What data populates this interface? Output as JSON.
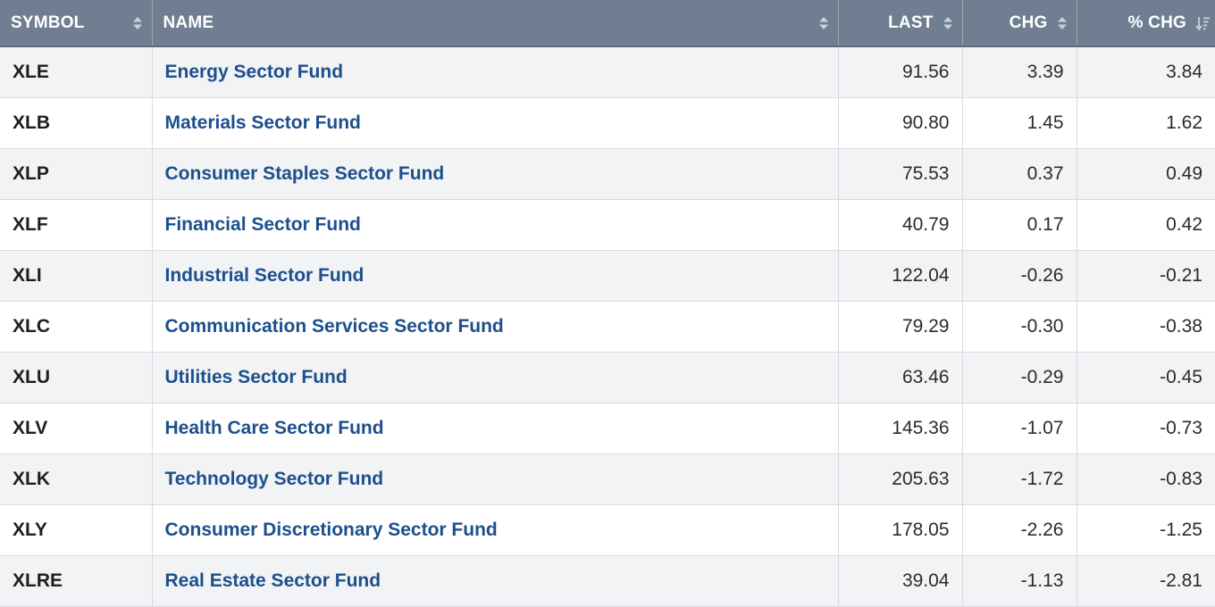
{
  "headers": {
    "symbol": "SYMBOL",
    "name": "NAME",
    "last": "LAST",
    "chg": "CHG",
    "pct_chg": "% CHG"
  },
  "rows": [
    {
      "symbol": "XLE",
      "name": "Energy Sector Fund",
      "last": "91.56",
      "chg": "3.39",
      "pct_chg": "3.84"
    },
    {
      "symbol": "XLB",
      "name": "Materials Sector Fund",
      "last": "90.80",
      "chg": "1.45",
      "pct_chg": "1.62"
    },
    {
      "symbol": "XLP",
      "name": "Consumer Staples Sector Fund",
      "last": "75.53",
      "chg": "0.37",
      "pct_chg": "0.49"
    },
    {
      "symbol": "XLF",
      "name": "Financial Sector Fund",
      "last": "40.79",
      "chg": "0.17",
      "pct_chg": "0.42"
    },
    {
      "symbol": "XLI",
      "name": "Industrial Sector Fund",
      "last": "122.04",
      "chg": "-0.26",
      "pct_chg": "-0.21"
    },
    {
      "symbol": "XLC",
      "name": "Communication Services Sector Fund",
      "last": "79.29",
      "chg": "-0.30",
      "pct_chg": "-0.38"
    },
    {
      "symbol": "XLU",
      "name": "Utilities Sector Fund",
      "last": "63.46",
      "chg": "-0.29",
      "pct_chg": "-0.45"
    },
    {
      "symbol": "XLV",
      "name": "Health Care Sector Fund",
      "last": "145.36",
      "chg": "-1.07",
      "pct_chg": "-0.73"
    },
    {
      "symbol": "XLK",
      "name": "Technology Sector Fund",
      "last": "205.63",
      "chg": "-1.72",
      "pct_chg": "-0.83"
    },
    {
      "symbol": "XLY",
      "name": "Consumer Discretionary Sector Fund",
      "last": "178.05",
      "chg": "-2.26",
      "pct_chg": "-1.25"
    },
    {
      "symbol": "XLRE",
      "name": "Real Estate Sector Fund",
      "last": "39.04",
      "chg": "-1.13",
      "pct_chg": "-2.81"
    }
  ],
  "sort": {
    "column": "pct_chg",
    "direction": "descending"
  },
  "icons": {
    "sortable": "sort-both-icon",
    "sorted_desc": "sort-descending-icon"
  },
  "colors": {
    "header_bg": "#6f7f91",
    "link": "#1d4f8c",
    "row_alt": "#f1f3f5"
  }
}
